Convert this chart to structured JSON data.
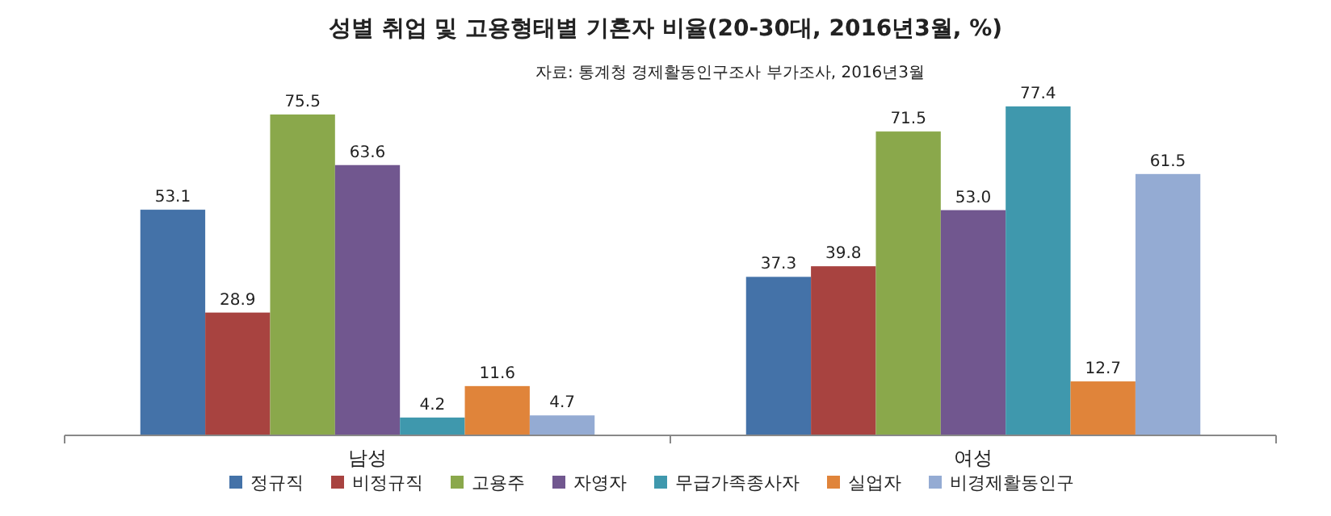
{
  "chart_data": {
    "type": "bar",
    "title": "성별 취업 및 고용형태별 기혼자 비율(20-30대, 2016년3월, %)",
    "annotations": [
      "자료: 통계청 경제활동인구조사 부가조사, 2016년3월"
    ],
    "categories": [
      "남성",
      "여성"
    ],
    "legend": "bottom",
    "series": [
      {
        "name": "정규직",
        "color": "#4472a8",
        "values": [
          53.1,
          37.3
        ],
        "value_labels": [
          "53.1",
          "37.3"
        ]
      },
      {
        "name": "비정규직",
        "color": "#a84340",
        "values": [
          28.9,
          39.8
        ],
        "value_labels": [
          "28.9",
          "39.8"
        ]
      },
      {
        "name": "고용주",
        "color": "#8aa84b",
        "values": [
          75.5,
          71.5
        ],
        "value_labels": [
          "75.5",
          "71.5"
        ]
      },
      {
        "name": "자영자",
        "color": "#71578f",
        "values": [
          63.6,
          53.0
        ],
        "value_labels": [
          "63.6",
          "53.0"
        ]
      },
      {
        "name": "무급가족종사자",
        "color": "#3f98ad",
        "values": [
          4.2,
          77.4
        ],
        "value_labels": [
          "4.2",
          "77.4"
        ]
      },
      {
        "name": "실업자",
        "color": "#e0843a",
        "values": [
          11.6,
          12.7
        ],
        "value_labels": [
          "11.6",
          "12.7"
        ]
      },
      {
        "name": "비경제활동인구",
        "color": "#94abd3",
        "values": [
          4.7,
          61.5
        ],
        "value_labels": [
          "4.7",
          "61.5"
        ]
      }
    ]
  }
}
